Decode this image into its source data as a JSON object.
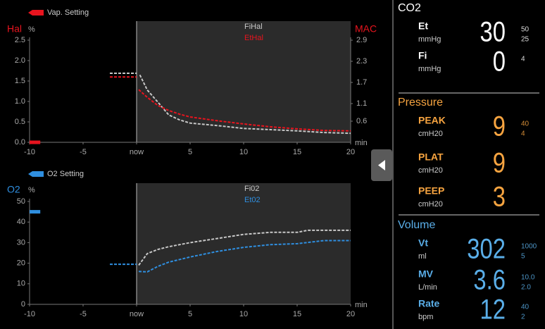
{
  "chart_data": [
    {
      "type": "line",
      "ylabel": "Hal",
      "yunit": "%",
      "y2label": "MAC",
      "xunit": "min",
      "label_color": "#e8141e",
      "xlim": [
        -10,
        20
      ],
      "xticks": [
        -10,
        -5,
        {
          "value": 0,
          "label": "now"
        },
        5,
        10,
        15,
        20
      ],
      "ylim": [
        0,
        2.5
      ],
      "yticks": [
        {
          "value": 0,
          "label": "0.0"
        },
        0.5,
        {
          "value": 1,
          "label": "1.0"
        },
        1.5,
        {
          "value": 2,
          "label": "2.0"
        },
        2.5
      ],
      "y2lim": [
        0,
        2.9
      ],
      "y2ticks": [
        0.6,
        1.1,
        1.7,
        2.3,
        2.9
      ],
      "series": [
        {
          "name": "Vap. Setting",
          "marker": "bar",
          "color": "#e8141e",
          "x": [
            -10,
            -9
          ],
          "values": [
            0,
            0
          ]
        },
        {
          "name": "FiHal",
          "marker": "line",
          "color": "#c8c8c8",
          "x": [
            -2.5,
            0,
            0,
            0.3,
            1,
            2,
            3,
            4,
            5,
            7.5,
            10,
            12.5,
            15,
            17.5,
            20
          ],
          "values": [
            1.69,
            1.69,
            null,
            1.65,
            1.28,
            0.98,
            0.67,
            0.55,
            0.47,
            0.41,
            0.34,
            0.31,
            0.28,
            0.24,
            0.22
          ]
        },
        {
          "name": "EtHal",
          "marker": "line",
          "color": "#e8141e",
          "x": [
            -2.5,
            0,
            0,
            0.2,
            1,
            2,
            3,
            4,
            5,
            7.5,
            10,
            12.5,
            15,
            17.5,
            20
          ],
          "values": [
            1.6,
            1.6,
            null,
            1.29,
            1.1,
            0.9,
            0.78,
            0.69,
            0.62,
            0.53,
            0.45,
            0.38,
            0.33,
            0.29,
            0.28
          ]
        }
      ]
    },
    {
      "type": "line",
      "ylabel": "O2",
      "yunit": "%",
      "xunit": "min",
      "label_color": "#2f8fe0",
      "xlim": [
        -10,
        20
      ],
      "xticks": [
        -10,
        -5,
        {
          "value": 0,
          "label": "now"
        },
        5,
        10,
        15,
        20
      ],
      "ylim": [
        0,
        50
      ],
      "yticks": [
        0,
        10,
        20,
        30,
        40,
        50
      ],
      "series": [
        {
          "name": "O2 Setting",
          "marker": "bar",
          "color": "#2f8fe0",
          "x": [
            -10,
            -9
          ],
          "values": [
            45,
            45
          ]
        },
        {
          "name": "Fi02",
          "marker": "line",
          "color": "#c8c8c8",
          "x": [
            0.2,
            1,
            2,
            3,
            5,
            7.5,
            10,
            12.5,
            15,
            16,
            20
          ],
          "values": [
            19,
            24.7,
            26.7,
            28,
            30,
            32,
            34,
            35,
            35,
            36,
            36
          ]
        },
        {
          "name": "Et02",
          "marker": "line",
          "color": "#2f8fe0",
          "x": [
            -2.5,
            0,
            0,
            0.2,
            1,
            2,
            3,
            5,
            7.5,
            10,
            12.5,
            15,
            17.5,
            20
          ],
          "values": [
            19.5,
            19.5,
            null,
            16,
            15.8,
            18.5,
            20.5,
            23,
            25.7,
            27.7,
            29,
            29.5,
            31,
            31
          ]
        }
      ]
    }
  ],
  "panel": {
    "sections": [
      {
        "title": "CO2",
        "color": "#ffffff",
        "rows": [
          {
            "label": "Et",
            "unit": "mmHg",
            "value": "30",
            "limits": [
              "50",
              "25"
            ]
          },
          {
            "label": "Fi",
            "unit": "mmHg",
            "value": "0",
            "limits": [
              "4"
            ]
          }
        ]
      },
      {
        "title": "Pressure",
        "color": "#f7a440",
        "rows": [
          {
            "label": "PEAK",
            "unit": "cmH20",
            "value": "9",
            "limits": [
              "40",
              "4"
            ]
          },
          {
            "label": "PLAT",
            "unit": "cmH20",
            "value": "9",
            "limits": []
          },
          {
            "label": "PEEP",
            "unit": "cmH20",
            "value": "3",
            "limits": []
          }
        ]
      },
      {
        "title": "Volume",
        "color": "#5aaee8",
        "rows": [
          {
            "label": "Vt",
            "unit": "ml",
            "value": "302",
            "limits": [
              "1000",
              "5"
            ]
          },
          {
            "label": "MV",
            "unit": "L/min",
            "value": "3.6",
            "limits": [
              "10.0",
              "2.0"
            ]
          },
          {
            "label": "Rate",
            "unit": "bpm",
            "value": "12",
            "limits": [
              "40",
              "2"
            ]
          }
        ]
      }
    ]
  }
}
